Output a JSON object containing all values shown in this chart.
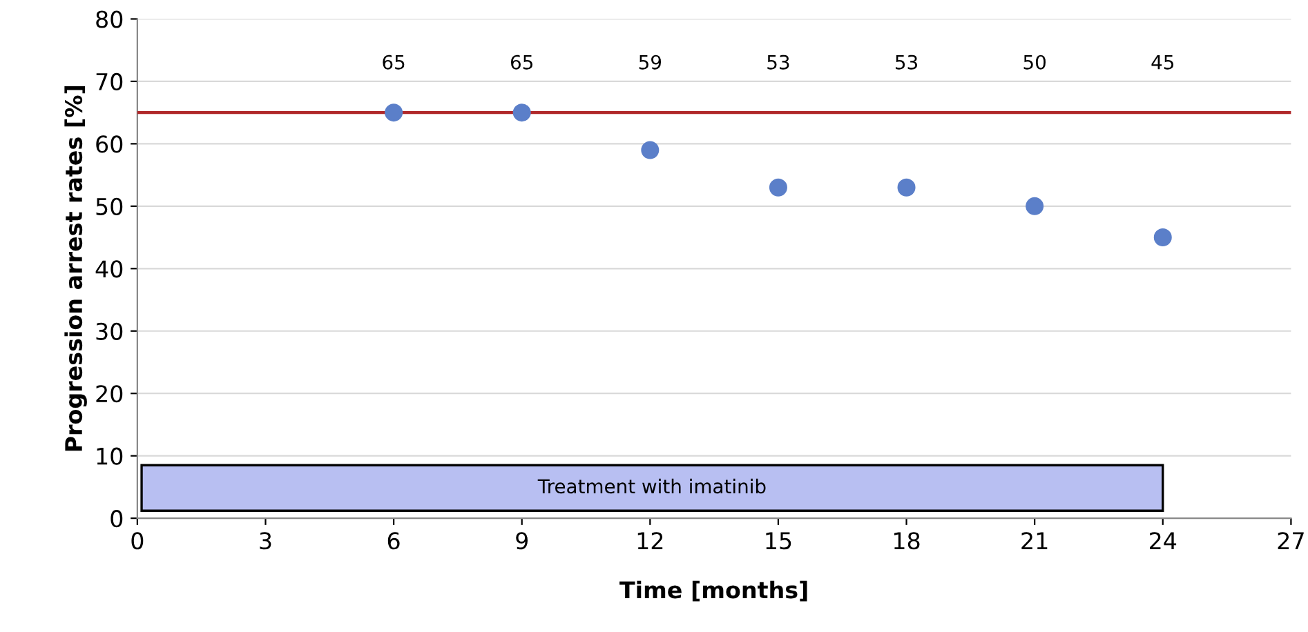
{
  "chart_data": {
    "type": "scatter",
    "xlabel": "Time [months]",
    "ylabel": "Progression arrest rates [%]",
    "x": [
      6,
      9,
      12,
      15,
      18,
      21,
      24
    ],
    "series": [
      {
        "color": "#5b7fc9",
        "values": [
          65,
          65,
          59,
          53,
          53,
          50,
          45
        ]
      }
    ],
    "annotations": [
      "65",
      "65",
      "59",
      "53",
      "53",
      "50",
      "45"
    ],
    "marker": "circle",
    "xlim": [
      0,
      27
    ],
    "xticks": [
      0,
      3,
      6,
      9,
      12,
      15,
      18,
      21,
      24,
      27
    ],
    "ylim": [
      0,
      80
    ],
    "yticks": [
      0,
      10,
      20,
      30,
      40,
      50,
      60,
      70,
      80
    ],
    "grid": "y",
    "ref_lines": [
      {
        "axis": "y",
        "value": 65,
        "color": "#b0282a"
      }
    ],
    "bands": [
      {
        "axis": "x",
        "from": 0.1,
        "to": 24,
        "label": "Treatment with imatinib",
        "color": "#b8bff2"
      }
    ]
  }
}
